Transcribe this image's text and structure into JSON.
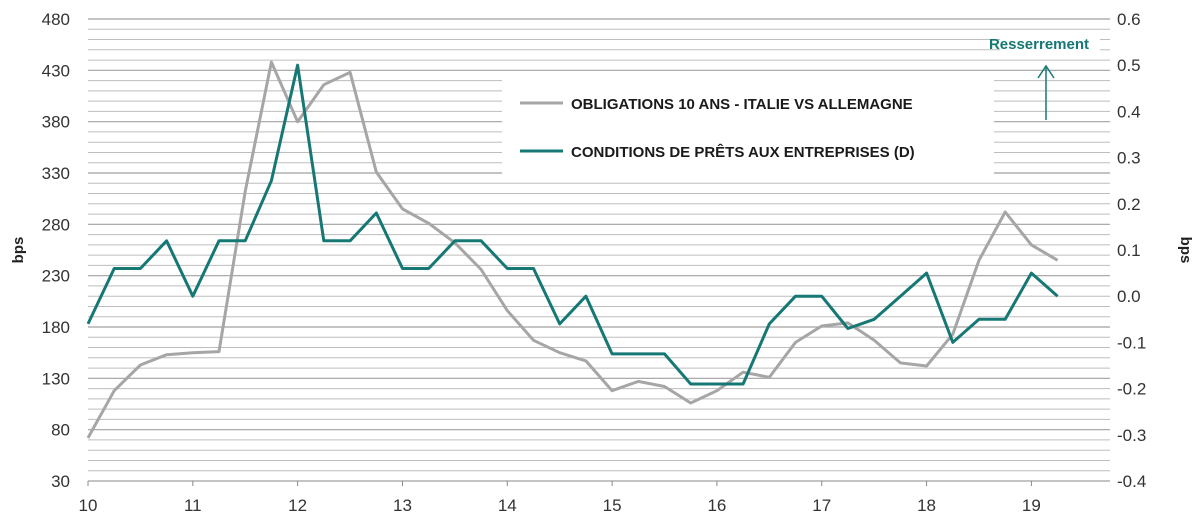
{
  "chart_data": {
    "type": "line",
    "x": [
      10.0,
      10.25,
      10.5,
      10.75,
      11.0,
      11.25,
      11.5,
      11.75,
      12.0,
      12.25,
      12.5,
      12.75,
      13.0,
      13.25,
      13.5,
      13.75,
      14.0,
      14.25,
      14.5,
      14.75,
      15.0,
      15.25,
      15.5,
      15.75,
      16.0,
      16.25,
      16.5,
      16.75,
      17.0,
      17.25,
      17.5,
      17.75,
      18.0,
      18.25,
      18.5,
      18.75,
      19.0,
      19.25
    ],
    "series": [
      {
        "name": "OBLIGATIONS 10 ANS - ITALIE VS ALLEMAGNE",
        "axis": "left",
        "color": "#a6a6a6",
        "values": [
          72,
          118,
          143,
          153,
          155,
          156,
          312,
          438,
          380,
          416,
          428,
          331,
          295,
          281,
          262,
          236,
          196,
          167,
          155,
          147,
          118,
          127,
          122,
          106,
          118,
          136,
          131,
          165,
          181,
          184,
          167,
          145,
          142,
          173,
          245,
          292,
          260,
          245
        ]
      },
      {
        "name": "CONDITIONS DE PRÊTS AUX ENTREPRISES (D)",
        "axis": "right",
        "color": "#167875",
        "values": [
          -0.06,
          0.06,
          0.06,
          0.12,
          0.0,
          0.12,
          0.12,
          0.25,
          0.5,
          0.12,
          0.12,
          0.18,
          0.06,
          0.06,
          0.12,
          0.12,
          0.06,
          0.06,
          -0.06,
          0.0,
          -0.125,
          -0.125,
          -0.125,
          -0.19,
          -0.19,
          -0.19,
          -0.06,
          0.0,
          0.0,
          -0.07,
          -0.05,
          0.0,
          0.05,
          -0.1,
          -0.05,
          -0.05,
          0.05,
          0.0
        ]
      }
    ],
    "y_left": {
      "label": "bps",
      "ylim": [
        30,
        480
      ],
      "ticks": [
        "480",
        "430",
        "380",
        "330",
        "280",
        "230",
        "180",
        "130",
        "80",
        "30"
      ]
    },
    "y_right": {
      "label": "bps",
      "ylim": [
        -0.4,
        0.6
      ],
      "ticks": [
        "0.6",
        "0.5",
        "0.4",
        "0.3",
        "0.2",
        "0.1",
        "0.0",
        "-0.1",
        "-0.2",
        "-0.3",
        "-0.4"
      ]
    },
    "xlim": [
      10,
      19.75
    ],
    "x_ticks": [
      "10",
      "11",
      "12",
      "13",
      "14",
      "15",
      "16",
      "17",
      "18",
      "19"
    ],
    "legend_position": "top-center",
    "annotation": {
      "text": "Resserrement",
      "color": "#167875"
    },
    "grid": true
  }
}
